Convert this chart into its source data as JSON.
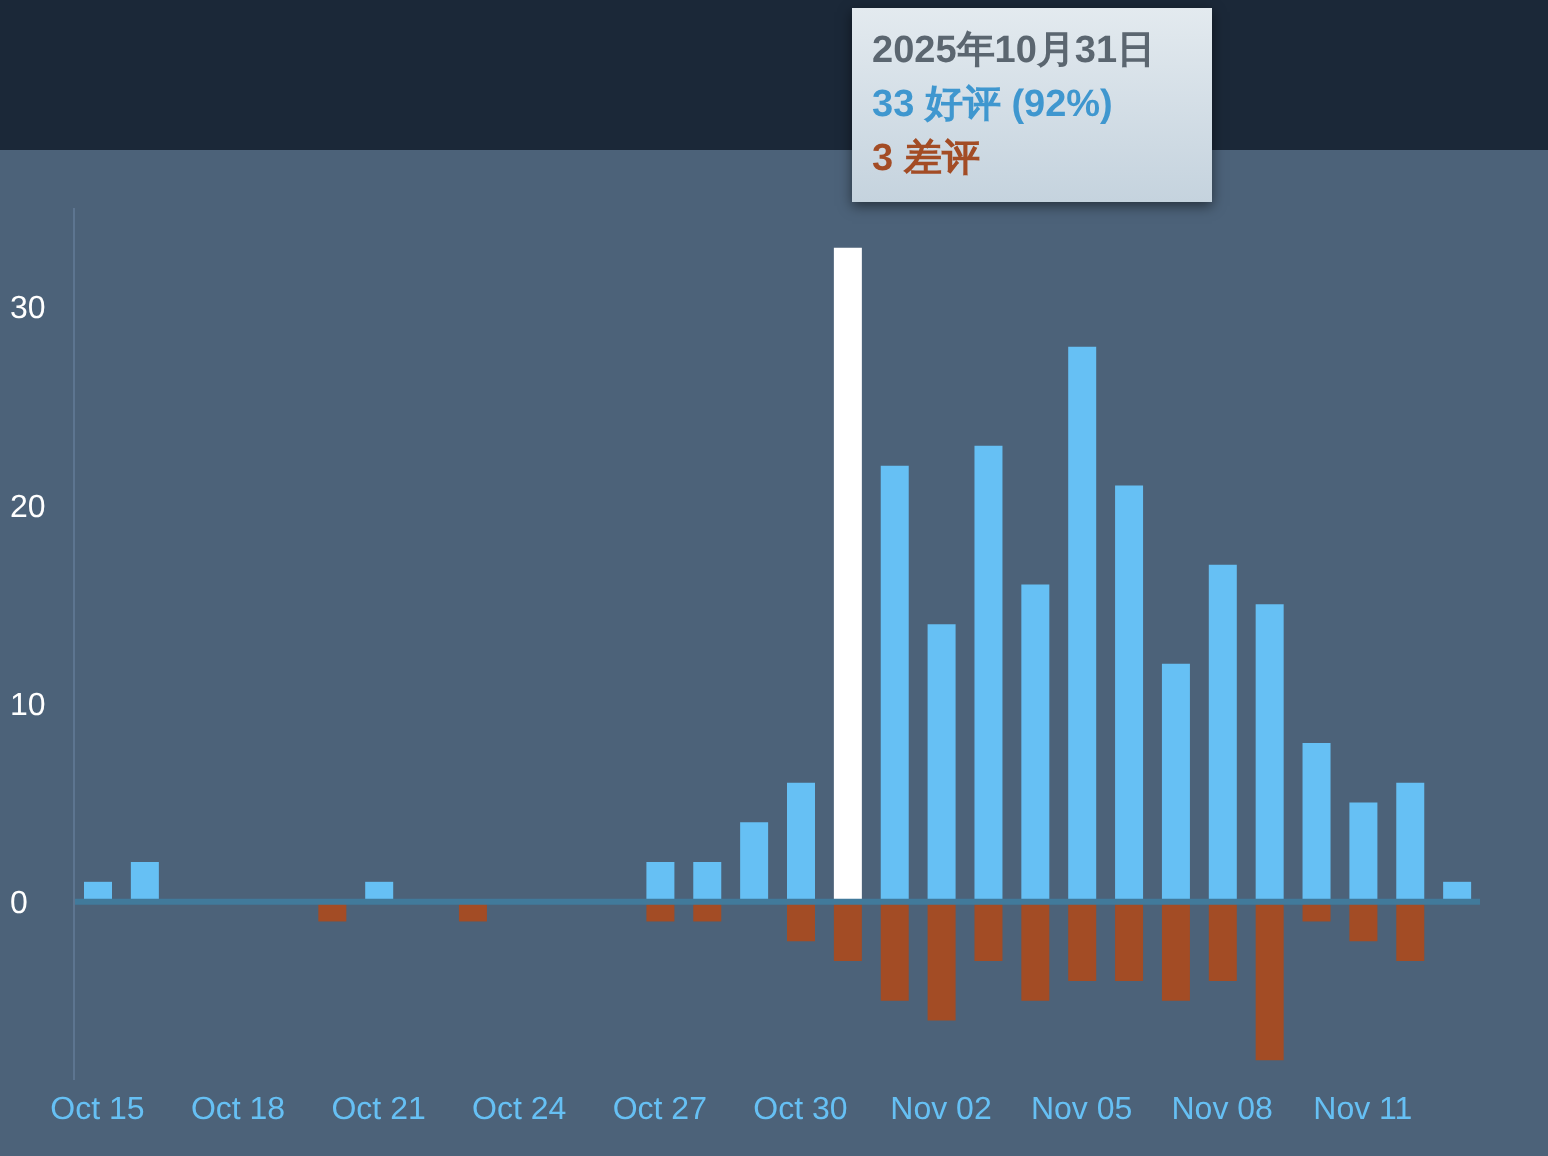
{
  "chart_data": {
    "type": "bar",
    "stacked": true,
    "categories": [
      "Oct 15",
      null,
      null,
      "Oct 18",
      null,
      null,
      "Oct 21",
      null,
      null,
      "Oct 24",
      null,
      null,
      "Oct 27",
      null,
      null,
      "Oct 30",
      null,
      null,
      "Nov 02",
      null,
      null,
      "Nov 05",
      null,
      null,
      "Nov 08",
      null,
      null,
      "Nov 11",
      null,
      null
    ],
    "series": [
      {
        "color": "#66c0f4",
        "colors": [
          "#66c0f4",
          "#66c0f4",
          "#66c0f4",
          "#66c0f4",
          "#66c0f4",
          "#66c0f4",
          "#66c0f4",
          "#66c0f4",
          "#66c0f4",
          "#66c0f4",
          "#66c0f4",
          "#66c0f4",
          "#66c0f4",
          "#66c0f4",
          "#66c0f4",
          "#66c0f4",
          "#ffffff",
          "#66c0f4",
          "#66c0f4",
          "#66c0f4",
          "#66c0f4",
          "#66c0f4",
          "#66c0f4",
          "#66c0f4",
          "#66c0f4",
          "#66c0f4",
          "#66c0f4",
          "#66c0f4",
          "#66c0f4",
          "#66c0f4"
        ],
        "values": [
          1,
          2,
          0,
          0,
          0,
          0,
          1,
          0,
          0,
          0,
          0,
          0,
          2,
          2,
          4,
          6,
          33,
          22,
          14,
          23,
          16,
          28,
          21,
          12,
          17,
          15,
          8,
          5,
          6,
          1
        ]
      },
      {
        "color": "#a34c25",
        "values": [
          0,
          0,
          0,
          0,
          0,
          -1,
          0,
          0,
          -1,
          0,
          0,
          0,
          -1,
          -1,
          0,
          -2,
          -3,
          -5,
          -6,
          -3,
          -5,
          -4,
          -4,
          -5,
          -4,
          -8,
          -1,
          -2,
          -3,
          0
        ]
      }
    ],
    "ylim": [
      -9,
      35
    ],
    "yticks": [
      0,
      10,
      20,
      30
    ],
    "ref_lines": [
      {
        "axis": "y",
        "value": 0,
        "color": "#417a9b"
      }
    ],
    "annotations": [
      "2025年10月31日",
      "33 好评 (92%)",
      "3 差评"
    ]
  }
}
